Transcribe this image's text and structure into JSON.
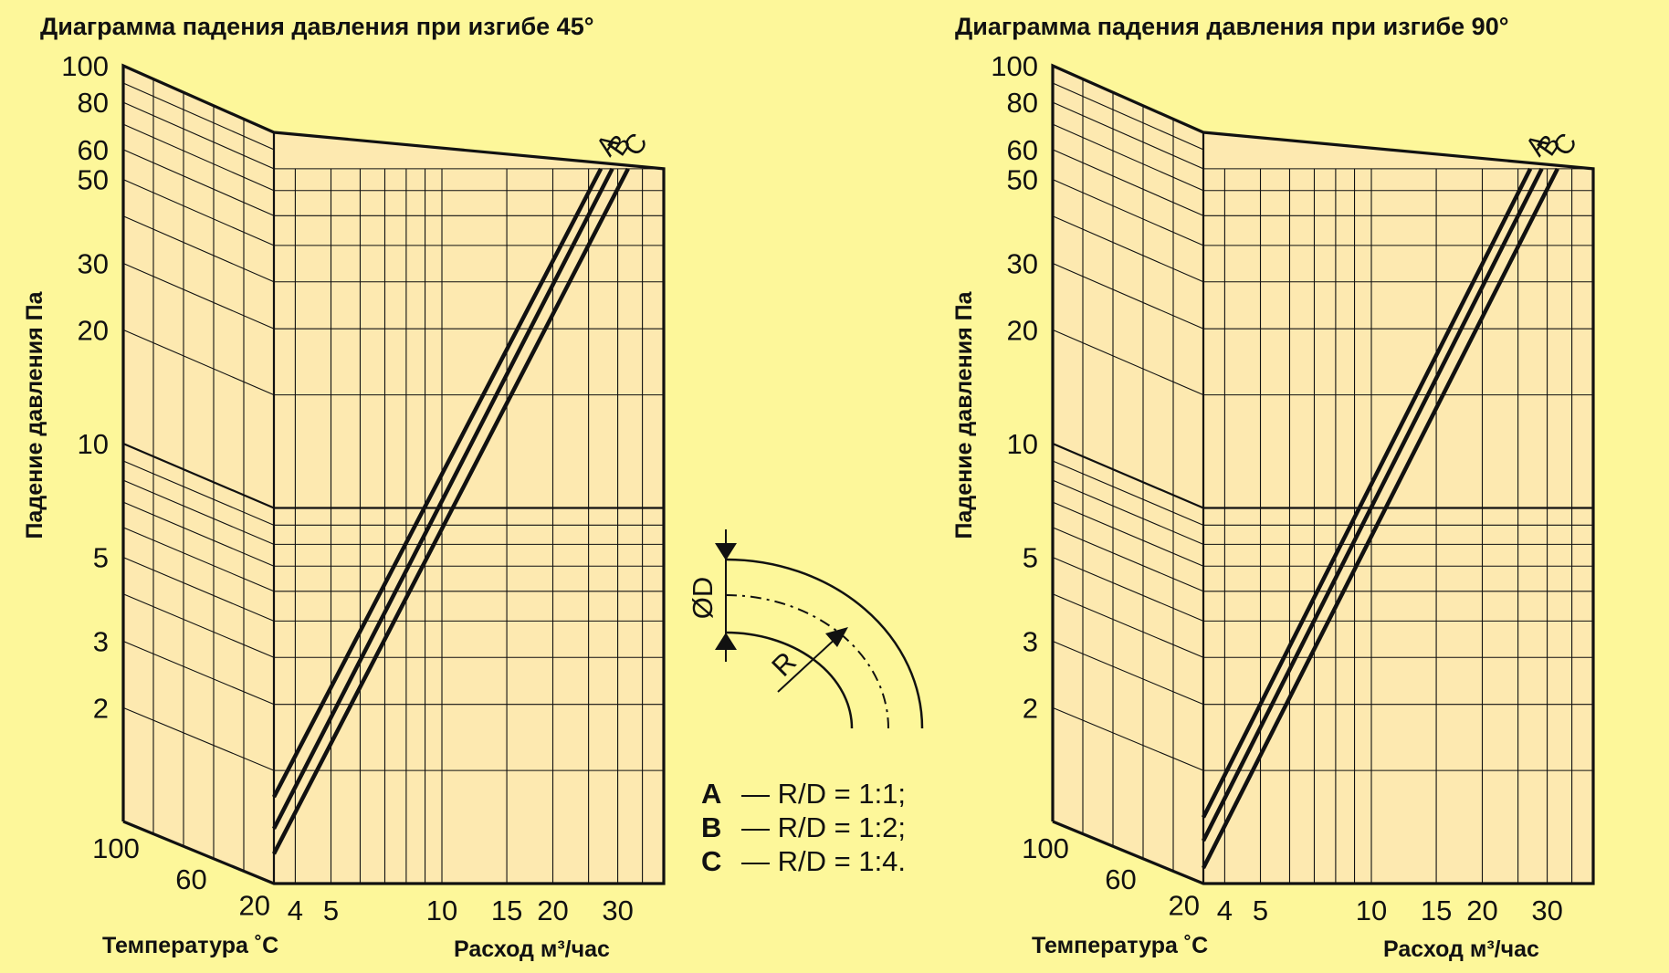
{
  "colors": {
    "background": "#fdf79a",
    "panel": "#fde9b0",
    "ink": "#111111"
  },
  "legend": {
    "items": [
      {
        "key": "A",
        "text": "— R/D = 1:1;"
      },
      {
        "key": "B",
        "text": "— R/D = 1:2;"
      },
      {
        "key": "C",
        "text": "— R/D = 1:4."
      }
    ]
  },
  "diagram": {
    "diameter_label": "ØD",
    "radius_label": "R"
  },
  "chart_data": [
    {
      "type": "line",
      "title": "Диаграмма падения давления при изгибе 45°",
      "ylabel": "Падение давления Па",
      "xlabel": "Расход м³/час",
      "temp_label": "Температура ˚С",
      "y_scale": "log",
      "x_scale": "log",
      "ylim": [
        1,
        100
      ],
      "xlim": [
        3.5,
        40
      ],
      "y_ticks": [
        "100",
        "80",
        "60",
        "50",
        "30",
        "20",
        "10",
        "5",
        "3",
        "2"
      ],
      "x_ticks": [
        "4",
        "5",
        "10",
        "15",
        "20",
        "30"
      ],
      "temp_ticks": [
        "100",
        "60",
        "20"
      ],
      "series": [
        {
          "name": "A",
          "x": [
            3.5,
            27
          ],
          "y": [
            1.7,
            80
          ]
        },
        {
          "name": "B",
          "x": [
            3.5,
            29
          ],
          "y": [
            1.4,
            80
          ]
        },
        {
          "name": "C",
          "x": [
            3.5,
            32
          ],
          "y": [
            1.2,
            80
          ]
        }
      ]
    },
    {
      "type": "line",
      "title": "Диаграмма падения давления при изгибе 90°",
      "ylabel": "Падение давления Па",
      "xlabel": "Расход м³/час",
      "temp_label": "Температура ˚С",
      "y_scale": "log",
      "x_scale": "log",
      "ylim": [
        1,
        100
      ],
      "xlim": [
        3.5,
        40
      ],
      "y_ticks": [
        "100",
        "80",
        "60",
        "50",
        "30",
        "20",
        "10",
        "5",
        "3",
        "2"
      ],
      "x_ticks": [
        "4",
        "5",
        "10",
        "15",
        "20",
        "30"
      ],
      "temp_ticks": [
        "100",
        "60",
        "20"
      ],
      "series": [
        {
          "name": "A",
          "x": [
            3.5,
            27
          ],
          "y": [
            1.5,
            80
          ]
        },
        {
          "name": "B",
          "x": [
            3.5,
            29
          ],
          "y": [
            1.3,
            80
          ]
        },
        {
          "name": "C",
          "x": [
            3.5,
            32
          ],
          "y": [
            1.1,
            80
          ]
        }
      ]
    }
  ]
}
